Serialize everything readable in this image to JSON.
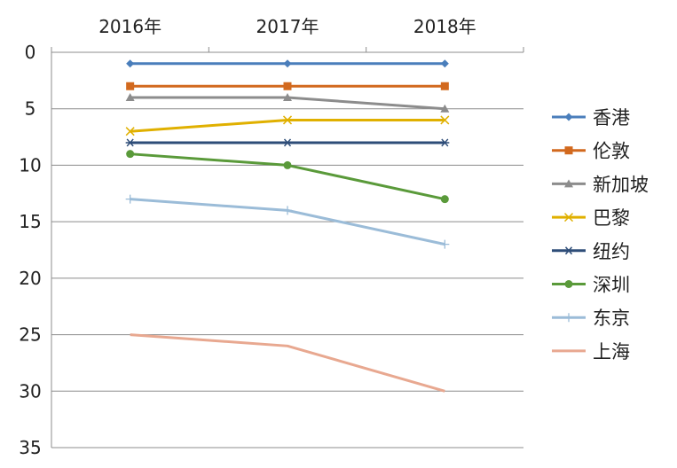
{
  "chart_data": {
    "type": "line",
    "categories": [
      "2016年",
      "2017年",
      "2018年"
    ],
    "y_axis": {
      "min": 0,
      "max": 35,
      "step": 5,
      "reversed": true
    },
    "x_axis_position": "top",
    "grid": true,
    "legend_position": "right",
    "series": [
      {
        "name": "香港",
        "values": [
          1,
          1,
          1
        ],
        "color": "#4a7ebb",
        "marker": "diamond"
      },
      {
        "name": "伦敦",
        "values": [
          3,
          3,
          3
        ],
        "color": "#d2691e",
        "marker": "square"
      },
      {
        "name": "新加坡",
        "values": [
          4,
          4,
          5
        ],
        "color": "#8c8c8c",
        "marker": "triangle"
      },
      {
        "name": "巴黎",
        "values": [
          7,
          6,
          6
        ],
        "color": "#e0b000",
        "marker": "x"
      },
      {
        "name": "纽约",
        "values": [
          8,
          8,
          8
        ],
        "color": "#2e4d78",
        "marker": "star"
      },
      {
        "name": "深圳",
        "values": [
          9,
          10,
          13
        ],
        "color": "#5a9a3a",
        "marker": "circle"
      },
      {
        "name": "东京",
        "values": [
          13,
          14,
          17
        ],
        "color": "#9bbcd8",
        "marker": "plus"
      },
      {
        "name": "上海",
        "values": [
          25,
          26,
          30
        ],
        "color": "#e8a890",
        "marker": "none"
      }
    ]
  }
}
